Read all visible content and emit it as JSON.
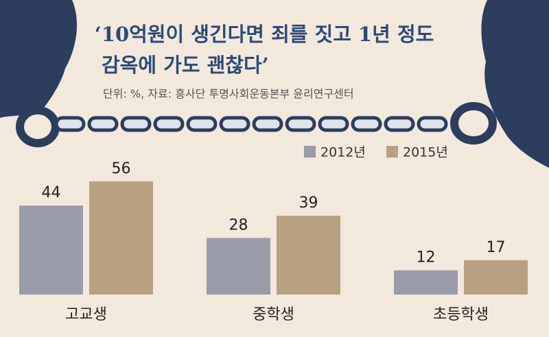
{
  "chart_data": {
    "type": "bar",
    "title_lines": [
      "‘10억원이 생긴다면 죄를 짓고 1년 정도",
      "감옥에 가도 괜찮다’"
    ],
    "subtitle": "단위: %, 자료: 흥사단 투명사회운동본부 윤리연구센터",
    "categories": [
      "고교생",
      "중학생",
      "초등학생"
    ],
    "series": [
      {
        "name": "2012년",
        "color": "#9a9ca9",
        "values": [
          44,
          28,
          12
        ]
      },
      {
        "name": "2015년",
        "color": "#b8a083",
        "values": [
          56,
          39,
          17
        ]
      }
    ]
  }
}
